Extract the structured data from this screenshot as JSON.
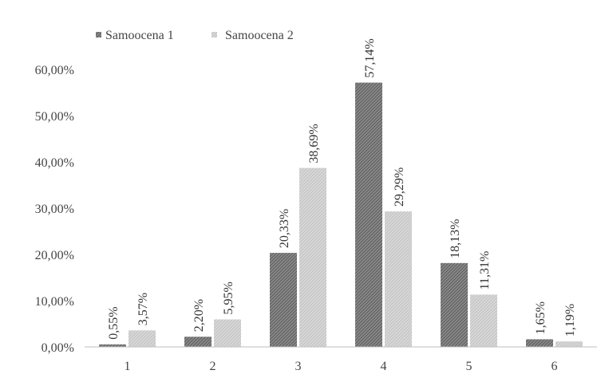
{
  "chart_data": {
    "type": "bar",
    "categories": [
      "1",
      "2",
      "3",
      "4",
      "5",
      "6"
    ],
    "series": [
      {
        "name": "Samoocena 1",
        "values": [
          0.55,
          2.2,
          20.33,
          57.14,
          18.13,
          1.65
        ],
        "labels": [
          "0,55%",
          "2,20%",
          "20,33%",
          "57,14%",
          "18,13%",
          "1,65%"
        ],
        "color": "#7a7a7a"
      },
      {
        "name": "Samoocena 2",
        "values": [
          3.57,
          5.95,
          38.69,
          29.29,
          11.31,
          1.19
        ],
        "labels": [
          "3,57%",
          "5,95%",
          "38,69%",
          "29,29%",
          "11,31%",
          "1,19%"
        ],
        "color": "#d0d0d0"
      }
    ],
    "ylim": [
      0,
      60
    ],
    "yticks": [
      0,
      10,
      20,
      30,
      40,
      50,
      60
    ],
    "ytick_labels": [
      "0,00%",
      "10,00%",
      "20,00%",
      "30,00%",
      "40,00%",
      "50,00%",
      "60,00%"
    ],
    "grid": false,
    "legend_position": "top-left",
    "title": "",
    "xlabel": "",
    "ylabel": ""
  }
}
